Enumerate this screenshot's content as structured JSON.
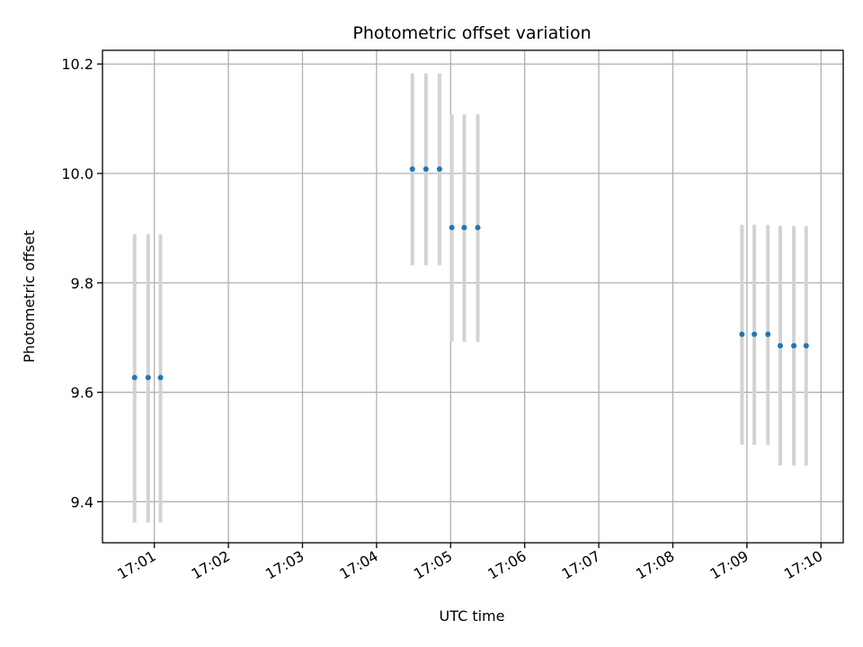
{
  "chart_data": {
    "type": "scatter",
    "title": "Photometric offset variation",
    "xlabel": "UTC time",
    "ylabel": "Photometric offset",
    "x_axis_type": "time",
    "xlim": [
      "16:60:18",
      "17:10:18"
    ],
    "ylim": [
      9.325,
      10.225
    ],
    "x_ticks": [
      "17:01",
      "17:02",
      "17:03",
      "17:04",
      "17:05",
      "17:06",
      "17:07",
      "17:08",
      "17:09",
      "17:10"
    ],
    "y_ticks": [
      9.4,
      9.6,
      9.8,
      10.0,
      10.2
    ],
    "y_tick_labels": [
      "9.4",
      "9.6",
      "9.8",
      "10.0",
      "10.2"
    ],
    "grid": true,
    "colors": {
      "points": "#1f77b4",
      "errorbars": "#d3d3d3",
      "grid": "#b0b0b0"
    },
    "points": [
      {
        "x": "17:00:44",
        "y": 9.627,
        "yerr_low": 9.362,
        "yerr_high": 9.889
      },
      {
        "x": "17:00:55",
        "y": 9.627,
        "yerr_low": 9.362,
        "yerr_high": 9.889
      },
      {
        "x": "17:01:05",
        "y": 9.627,
        "yerr_low": 9.362,
        "yerr_high": 9.889
      },
      {
        "x": "17:04:29",
        "y": 10.008,
        "yerr_low": 9.832,
        "yerr_high": 10.183
      },
      {
        "x": "17:04:40",
        "y": 10.008,
        "yerr_low": 9.832,
        "yerr_high": 10.183
      },
      {
        "x": "17:04:51",
        "y": 10.008,
        "yerr_low": 9.832,
        "yerr_high": 10.183
      },
      {
        "x": "17:05:01",
        "y": 9.901,
        "yerr_low": 9.692,
        "yerr_high": 10.108
      },
      {
        "x": "17:05:11",
        "y": 9.901,
        "yerr_low": 9.692,
        "yerr_high": 10.108
      },
      {
        "x": "17:05:22",
        "y": 9.901,
        "yerr_low": 9.692,
        "yerr_high": 10.108
      },
      {
        "x": "17:08:56",
        "y": 9.706,
        "yerr_low": 9.504,
        "yerr_high": 9.906
      },
      {
        "x": "17:09:06",
        "y": 9.706,
        "yerr_low": 9.504,
        "yerr_high": 9.906
      },
      {
        "x": "17:09:17",
        "y": 9.706,
        "yerr_low": 9.504,
        "yerr_high": 9.906
      },
      {
        "x": "17:09:27",
        "y": 9.685,
        "yerr_low": 9.466,
        "yerr_high": 9.904
      },
      {
        "x": "17:09:38",
        "y": 9.685,
        "yerr_low": 9.466,
        "yerr_high": 9.904
      },
      {
        "x": "17:09:48",
        "y": 9.685,
        "yerr_low": 9.466,
        "yerr_high": 9.904
      }
    ]
  }
}
